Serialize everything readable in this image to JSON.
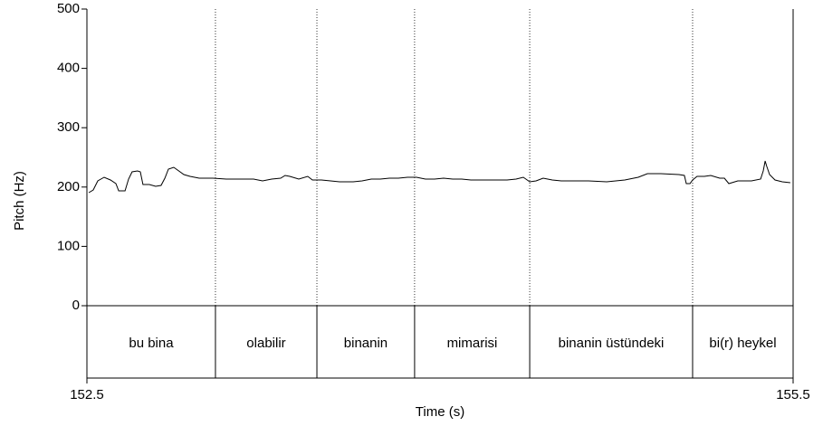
{
  "chart_data": {
    "type": "line",
    "ylabel": "Pitch (Hz)",
    "xlabel": "Time (s)",
    "xlim": [
      152.5,
      155.5
    ],
    "xticks": [
      152.5,
      155.5
    ],
    "ylim": [
      0,
      500
    ],
    "yticks": [
      0,
      100,
      200,
      300,
      400,
      500
    ],
    "x": [
      152.508,
      152.527,
      152.546,
      152.573,
      152.6,
      152.623,
      152.635,
      152.662,
      152.677,
      152.692,
      152.715,
      152.727,
      152.738,
      152.765,
      152.792,
      152.815,
      152.831,
      152.846,
      152.869,
      152.885,
      152.912,
      152.938,
      152.977,
      153.035,
      153.092,
      153.15,
      153.208,
      153.246,
      153.285,
      153.323,
      153.342,
      153.362,
      153.4,
      153.438,
      153.458,
      153.496,
      153.535,
      153.573,
      153.631,
      153.669,
      153.708,
      153.746,
      153.785,
      153.823,
      153.862,
      153.9,
      153.938,
      153.977,
      154.015,
      154.054,
      154.092,
      154.131,
      154.169,
      154.227,
      154.285,
      154.323,
      154.354,
      154.381,
      154.408,
      154.438,
      154.477,
      154.515,
      154.573,
      154.631,
      154.708,
      154.785,
      154.842,
      154.881,
      154.938,
      155.015,
      155.038,
      155.046,
      155.062,
      155.073,
      155.092,
      155.123,
      155.15,
      155.188,
      155.208,
      155.227,
      155.265,
      155.323,
      155.362,
      155.373,
      155.381,
      155.388,
      155.4,
      155.423,
      155.454,
      155.488
    ],
    "series": [
      {
        "color": "#000000",
        "values": [
          190.5,
          195.1,
          210.4,
          216.5,
          211.9,
          205.8,
          193.6,
          193.6,
          213.4,
          225.6,
          227.1,
          225.6,
          204.3,
          204.3,
          201.2,
          202.7,
          214.9,
          230.2,
          233.2,
          228.7,
          221.0,
          218.0,
          214.9,
          214.9,
          213.4,
          213.4,
          213.4,
          210.4,
          213.4,
          214.9,
          219.5,
          218.0,
          213.4,
          218.0,
          211.9,
          211.9,
          210.4,
          208.8,
          208.8,
          210.4,
          213.4,
          213.4,
          214.9,
          214.9,
          216.5,
          216.5,
          213.4,
          213.4,
          214.9,
          213.4,
          213.4,
          211.9,
          211.9,
          211.9,
          211.9,
          213.4,
          216.5,
          208.8,
          210.4,
          214.9,
          211.9,
          210.4,
          210.4,
          210.4,
          208.8,
          211.9,
          216.5,
          222.6,
          222.6,
          221.0,
          219.5,
          205.8,
          205.8,
          211.9,
          218.0,
          218.0,
          219.5,
          214.9,
          214.9,
          205.8,
          210.4,
          210.4,
          213.4,
          227.1,
          243.9,
          234.8,
          221.0,
          211.9,
          208.8,
          207.3
        ]
      }
    ],
    "interval_labels": [
      "bu bina",
      "olabilir",
      "binanin",
      "mimarisi",
      "binanin üstündeki",
      "bi(r) heykel"
    ],
    "boundaries": [
      153.046,
      153.477,
      153.892,
      154.381,
      155.073
    ]
  }
}
